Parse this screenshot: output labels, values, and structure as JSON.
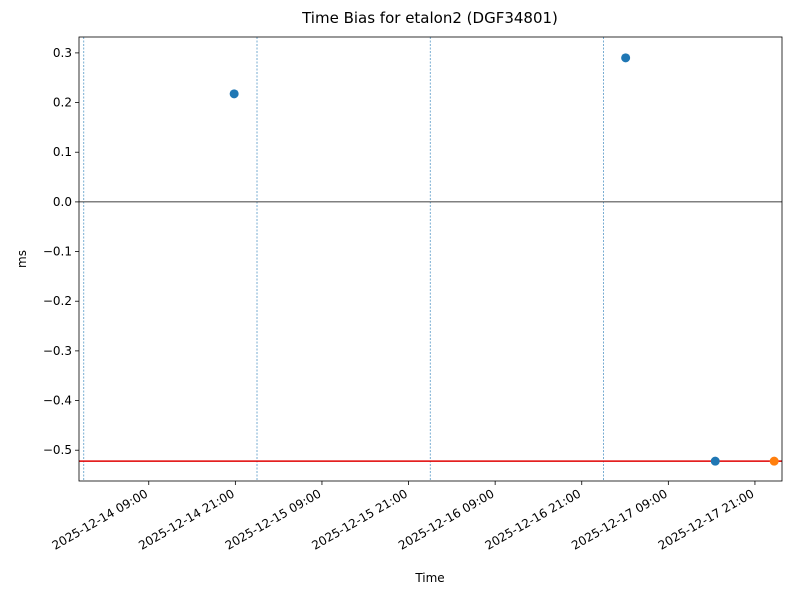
{
  "chart_data": {
    "type": "scatter",
    "title": "Time Bias for etalon2 (DGF34801)",
    "x_label": "Time",
    "y_label": "ms",
    "series": [
      {
        "color": "#1f77b4",
        "x": [
          "2025-12-14T20:50",
          "2025-12-17T03:05",
          "2025-12-17T15:30"
        ],
        "values": [
          0.2175,
          0.29,
          -0.522
        ]
      },
      {
        "color": "#ff7f0e",
        "x": [
          "2025-12-17T23:40"
        ],
        "values": [
          -0.522
        ]
      }
    ],
    "hlines": [
      {
        "value": 0,
        "color": "#000000"
      },
      {
        "value": -0.522,
        "color": "#e00000"
      }
    ],
    "vlines": {
      "color": "#1f77b4",
      "x": [
        "2025-12-14T00:00",
        "2025-12-15T00:00",
        "2025-12-16T00:00",
        "2025-12-17T00:00"
      ]
    },
    "xlim": [
      "2025-12-13T23:20",
      "2025-12-18T00:45"
    ],
    "xticks": [
      {
        "value": "2025-12-14T09:00",
        "label": "2025-12-14 09:00"
      },
      {
        "value": "2025-12-14T21:00",
        "label": "2025-12-14 21:00"
      },
      {
        "value": "2025-12-15T09:00",
        "label": "2025-12-15 09:00"
      },
      {
        "value": "2025-12-15T21:00",
        "label": "2025-12-15 21:00"
      },
      {
        "value": "2025-12-16T09:00",
        "label": "2025-12-16 09:00"
      },
      {
        "value": "2025-12-16T21:00",
        "label": "2025-12-16 21:00"
      },
      {
        "value": "2025-12-17T09:00",
        "label": "2025-12-17 09:00"
      },
      {
        "value": "2025-12-17T21:00",
        "label": "2025-12-17 21:00"
      }
    ],
    "ylim": [
      -0.562,
      0.332
    ],
    "yticks": [
      0.3,
      0.2,
      0.1,
      {
        "value": 0,
        "label": "0.0"
      },
      {
        "value": -0.1,
        "label": "−0.1"
      },
      {
        "value": -0.2,
        "label": "−0.2"
      },
      {
        "value": -0.3,
        "label": "−0.3"
      },
      {
        "value": -0.4,
        "label": "−0.4"
      },
      {
        "value": -0.5,
        "label": "−0.5"
      }
    ],
    "grid": false
  }
}
